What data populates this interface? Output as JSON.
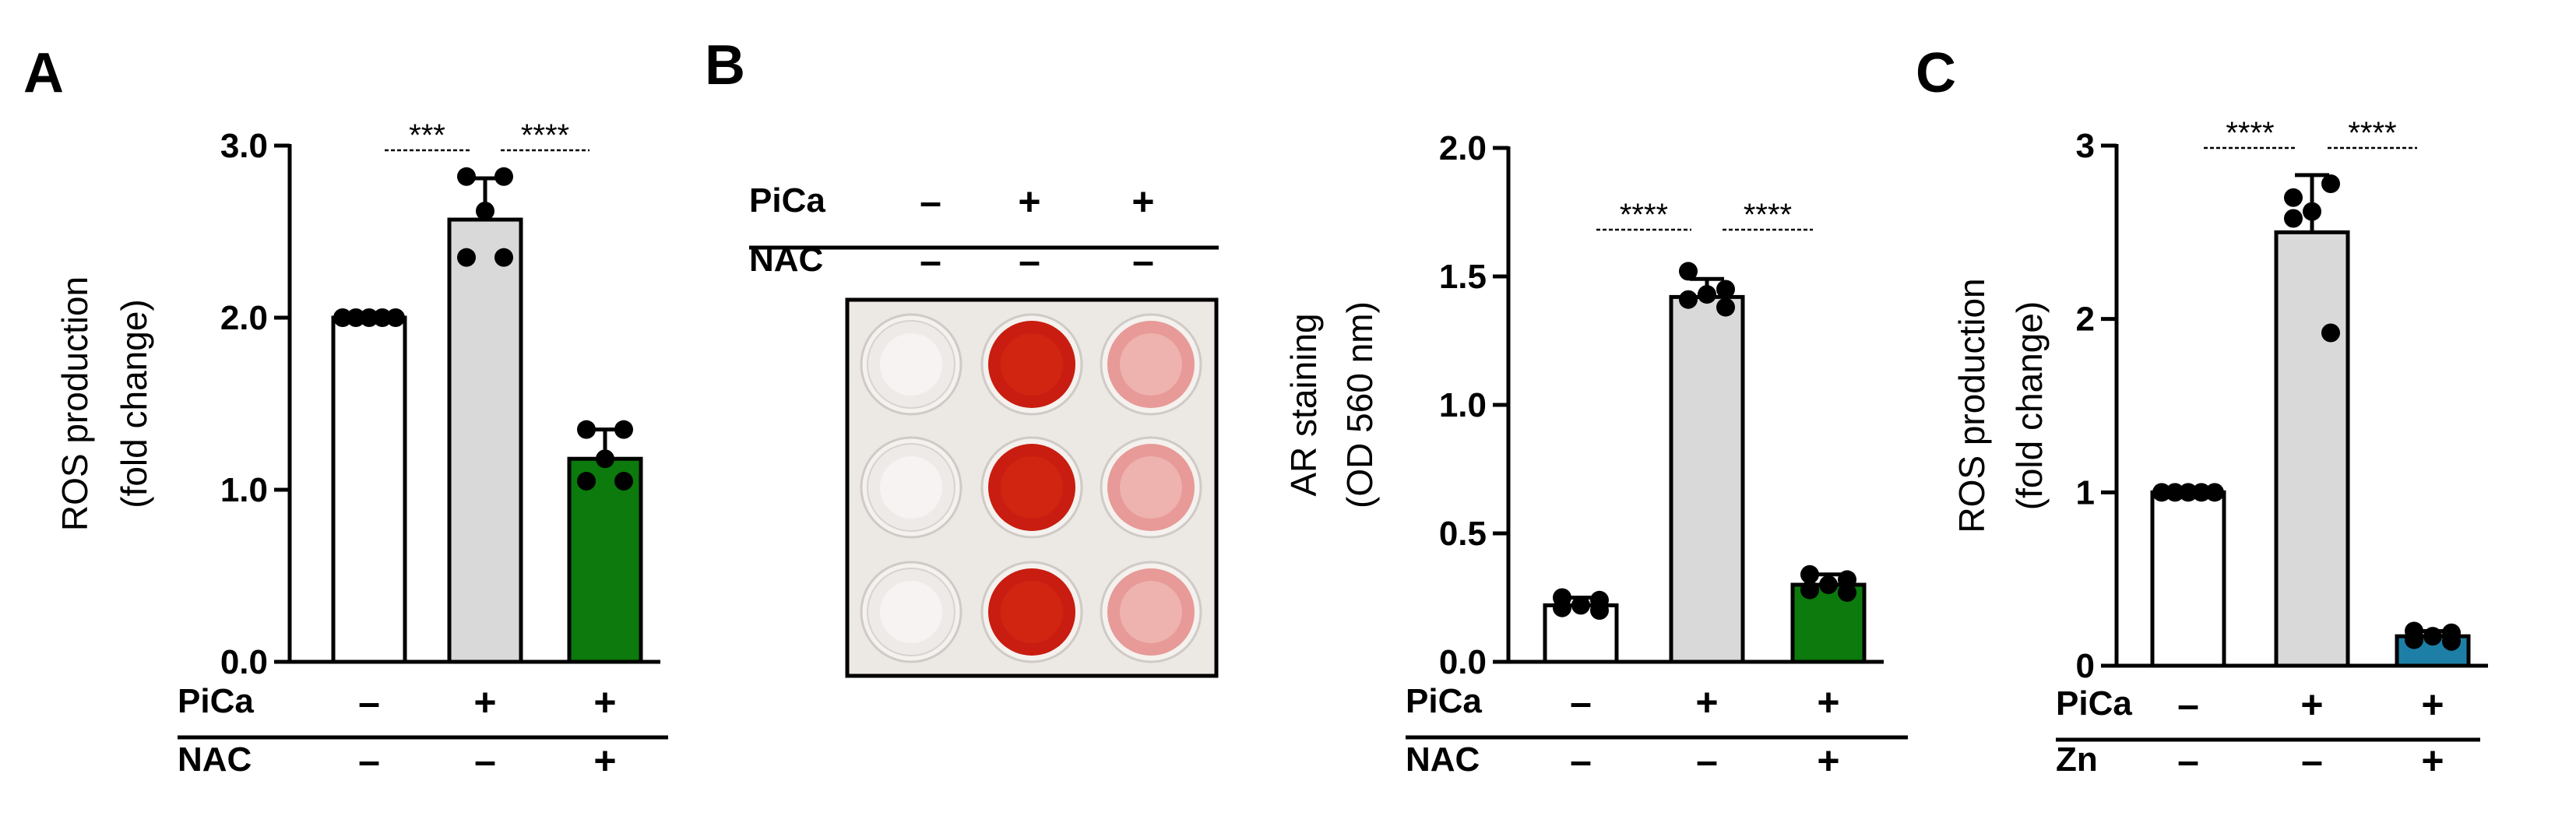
{
  "palette": {
    "white_bar": "#ffffff",
    "gray_bar": "#d9d9d9",
    "green_bar": "#0c7a0c",
    "teal_bar": "#1e7fa6",
    "point": "#000000",
    "well_clear": "#eeeae8",
    "well_red": "#c81d10",
    "well_pink": "#e79a97"
  },
  "chart_data": [
    {
      "panel": "A",
      "type": "bar",
      "ylabel": [
        "ROS production",
        "(fold change)"
      ],
      "ylim": [
        0,
        3.0
      ],
      "yticks": [
        0.0,
        1.0,
        2.0,
        3.0
      ],
      "ytick_labels": [
        "0.0",
        "1.0",
        "2.0",
        "3.0"
      ],
      "bars": [
        {
          "mean": 2.0,
          "err": 0.01,
          "fill": "white_bar",
          "points": [
            2.0,
            2.0,
            2.0,
            2.0,
            2.0
          ]
        },
        {
          "mean": 2.57,
          "err": 0.24,
          "fill": "gray_bar",
          "points": [
            2.82,
            2.82,
            2.62,
            2.35,
            2.35
          ]
        },
        {
          "mean": 1.18,
          "err": 0.17,
          "fill": "green_bar",
          "points": [
            1.35,
            1.35,
            1.18,
            1.05,
            1.05
          ]
        }
      ],
      "conditions": [
        {
          "label": "PiCa",
          "signs": [
            "–",
            "+",
            "+"
          ]
        },
        {
          "label": "NAC",
          "signs": [
            "–",
            "–",
            "+"
          ]
        }
      ],
      "significance": [
        {
          "from": 0,
          "to": 1,
          "label": "***"
        },
        {
          "from": 1,
          "to": 2,
          "label": "****"
        }
      ]
    },
    {
      "panel": "B",
      "type": "bar",
      "ylabel": [
        "AR staining",
        "(OD 560 nm)"
      ],
      "ylim": [
        0,
        2.0
      ],
      "yticks": [
        0.0,
        0.5,
        1.0,
        1.5,
        2.0
      ],
      "ytick_labels": [
        "0.0",
        "0.5",
        "1.0",
        "1.5",
        "2.0"
      ],
      "bars": [
        {
          "mean": 0.22,
          "err": 0.03,
          "fill": "white_bar",
          "points": [
            0.25,
            0.24,
            0.22,
            0.21,
            0.2
          ]
        },
        {
          "mean": 1.42,
          "err": 0.07,
          "fill": "gray_bar",
          "points": [
            1.52,
            1.45,
            1.43,
            1.41,
            1.38
          ]
        },
        {
          "mean": 0.3,
          "err": 0.04,
          "fill": "green_bar",
          "points": [
            0.34,
            0.32,
            0.3,
            0.28,
            0.27
          ]
        }
      ],
      "conditions": [
        {
          "label": "PiCa",
          "signs": [
            "–",
            "+",
            "+"
          ]
        },
        {
          "label": "NAC",
          "signs": [
            "–",
            "–",
            "+"
          ]
        }
      ],
      "significance": [
        {
          "from": 0,
          "to": 1,
          "label": "****"
        },
        {
          "from": 1,
          "to": 2,
          "label": "****"
        }
      ]
    },
    {
      "panel": "C",
      "type": "bar",
      "ylabel": [
        "ROS production",
        "(fold change)"
      ],
      "ylim": [
        0,
        3
      ],
      "yticks": [
        0,
        1,
        2,
        3
      ],
      "ytick_labels": [
        "0",
        "1",
        "2",
        "3"
      ],
      "bars": [
        {
          "mean": 1.0,
          "err": 0.01,
          "fill": "white_bar",
          "points": [
            1.0,
            1.0,
            1.0,
            1.0,
            1.0
          ]
        },
        {
          "mean": 2.5,
          "err": 0.33,
          "fill": "gray_bar",
          "points": [
            2.7,
            2.78,
            2.62,
            2.58,
            1.92
          ]
        },
        {
          "mean": 0.17,
          "err": 0.03,
          "fill": "teal_bar",
          "points": [
            0.2,
            0.19,
            0.17,
            0.15,
            0.14
          ]
        }
      ],
      "conditions": [
        {
          "label": "PiCa",
          "signs": [
            "–",
            "+",
            "+"
          ]
        },
        {
          "label": "Zn",
          "signs": [
            "–",
            "–",
            "+"
          ]
        }
      ],
      "significance": [
        {
          "from": 0,
          "to": 1,
          "label": "****"
        },
        {
          "from": 1,
          "to": 2,
          "label": "****"
        }
      ]
    }
  ],
  "well_plate": {
    "conditions": [
      {
        "label": "PiCa",
        "signs": [
          "–",
          "+",
          "+"
        ]
      },
      {
        "label": "NAC",
        "signs": [
          "–",
          "–",
          "–"
        ]
      }
    ],
    "columns": [
      "well_clear",
      "well_red",
      "well_pink"
    ]
  }
}
